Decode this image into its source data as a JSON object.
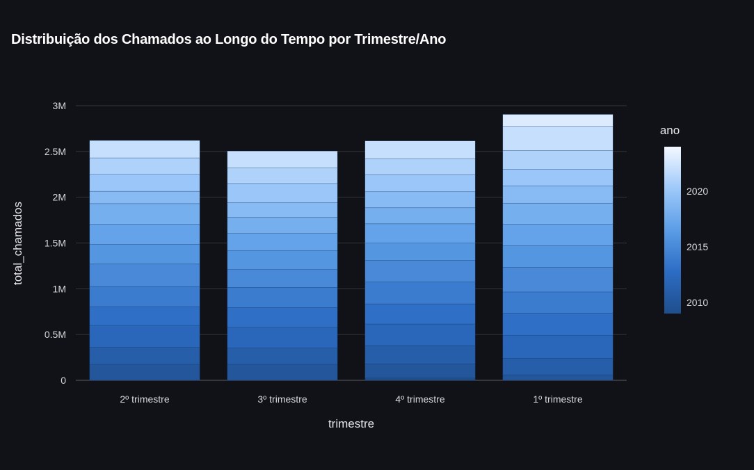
{
  "chart_data": {
    "type": "bar",
    "stacked": true,
    "title": "Distribuição dos Chamados ao Longo do Tempo por Trimestre/Ano",
    "xlabel": "trimestre",
    "ylabel": "total_chamados",
    "ylim": [
      0,
      3000000
    ],
    "yticks": [
      {
        "value": 0,
        "label": "0"
      },
      {
        "value": 500000,
        "label": "0.5M"
      },
      {
        "value": 1000000,
        "label": "1M"
      },
      {
        "value": 1500000,
        "label": "1.5M"
      },
      {
        "value": 2000000,
        "label": "2M"
      },
      {
        "value": 2500000,
        "label": "2.5M"
      },
      {
        "value": 3000000,
        "label": "3M"
      }
    ],
    "grid": true,
    "categories": [
      "2º trimestre",
      "3º trimestre",
      "4º trimestre",
      "1º trimestre"
    ],
    "colorbar": {
      "title": "ano",
      "min": 2009,
      "max": 2024,
      "ticks": [
        2010,
        2015,
        2020
      ],
      "colors": [
        "#1f4e8c",
        "#2d6cc4",
        "#5b9de6",
        "#9ec9fa",
        "#f4f8ff"
      ]
    },
    "stacks": [
      [
        {
          "year": 2010,
          "value": 175000
        },
        {
          "year": 2011,
          "value": 185000
        },
        {
          "year": 2012,
          "value": 240000
        },
        {
          "year": 2013,
          "value": 205000
        },
        {
          "year": 2014,
          "value": 220000
        },
        {
          "year": 2015,
          "value": 245000
        },
        {
          "year": 2016,
          "value": 215000
        },
        {
          "year": 2017,
          "value": 220000
        },
        {
          "year": 2018,
          "value": 225000
        },
        {
          "year": 2019,
          "value": 135000
        },
        {
          "year": 2020,
          "value": 185000
        },
        {
          "year": 2021,
          "value": 180000
        },
        {
          "year": 2022,
          "value": 190000
        }
      ],
      [
        {
          "year": 2010,
          "value": 175000
        },
        {
          "year": 2011,
          "value": 180000
        },
        {
          "year": 2012,
          "value": 225000
        },
        {
          "year": 2013,
          "value": 215000
        },
        {
          "year": 2014,
          "value": 220000
        },
        {
          "year": 2015,
          "value": 195000
        },
        {
          "year": 2016,
          "value": 205000
        },
        {
          "year": 2017,
          "value": 190000
        },
        {
          "year": 2018,
          "value": 175000
        },
        {
          "year": 2019,
          "value": 160000
        },
        {
          "year": 2020,
          "value": 210000
        },
        {
          "year": 2021,
          "value": 170000
        },
        {
          "year": 2022,
          "value": 185000
        }
      ],
      [
        {
          "year": 2009,
          "value": 25000
        },
        {
          "year": 2010,
          "value": 155000
        },
        {
          "year": 2011,
          "value": 200000
        },
        {
          "year": 2012,
          "value": 235000
        },
        {
          "year": 2013,
          "value": 220000
        },
        {
          "year": 2014,
          "value": 240000
        },
        {
          "year": 2015,
          "value": 235000
        },
        {
          "year": 2016,
          "value": 190000
        },
        {
          "year": 2017,
          "value": 210000
        },
        {
          "year": 2018,
          "value": 175000
        },
        {
          "year": 2019,
          "value": 175000
        },
        {
          "year": 2020,
          "value": 185000
        },
        {
          "year": 2021,
          "value": 175000
        },
        {
          "year": 2022,
          "value": 195000
        }
      ],
      [
        {
          "year": 2010,
          "value": 60000
        },
        {
          "year": 2011,
          "value": 180000
        },
        {
          "year": 2012,
          "value": 250000
        },
        {
          "year": 2013,
          "value": 245000
        },
        {
          "year": 2014,
          "value": 230000
        },
        {
          "year": 2015,
          "value": 270000
        },
        {
          "year": 2016,
          "value": 235000
        },
        {
          "year": 2017,
          "value": 235000
        },
        {
          "year": 2018,
          "value": 230000
        },
        {
          "year": 2019,
          "value": 190000
        },
        {
          "year": 2020,
          "value": 180000
        },
        {
          "year": 2021,
          "value": 205000
        },
        {
          "year": 2022,
          "value": 265000
        },
        {
          "year": 2023,
          "value": 130000
        }
      ]
    ]
  }
}
